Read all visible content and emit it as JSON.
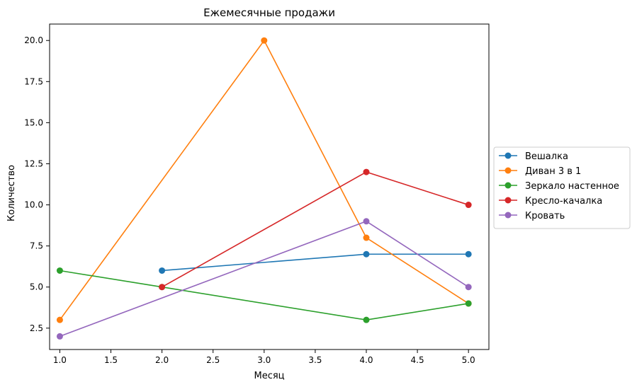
{
  "chart_data": {
    "type": "line",
    "title": "Ежемесячные продажи",
    "xlabel": "Месяц",
    "ylabel": "Количество",
    "xlim": [
      0.9,
      5.2
    ],
    "ylim": [
      1.2,
      21.0
    ],
    "x_ticks": [
      1.0,
      1.5,
      2.0,
      2.5,
      3.0,
      3.5,
      4.0,
      4.5,
      5.0
    ],
    "x_tick_labels": [
      "1.0",
      "1.5",
      "2.0",
      "2.5",
      "3.0",
      "3.5",
      "4.0",
      "4.5",
      "5.0"
    ],
    "y_ticks": [
      2.5,
      5.0,
      7.5,
      10.0,
      12.5,
      15.0,
      17.5,
      20.0
    ],
    "y_tick_labels": [
      "2.5",
      "5.0",
      "7.5",
      "10.0",
      "12.5",
      "15.0",
      "17.5",
      "20.0"
    ],
    "grid": false,
    "legend_position": "center-right, outside plot",
    "series": [
      {
        "name": "Вешалка",
        "color": "#1f77b4",
        "points": [
          [
            2,
            6
          ],
          [
            4,
            7
          ],
          [
            5,
            7
          ]
        ]
      },
      {
        "name": "Диван 3 в 1",
        "color": "#ff7f0e",
        "points": [
          [
            1,
            3
          ],
          [
            3,
            20
          ],
          [
            4,
            8
          ],
          [
            5,
            4
          ]
        ]
      },
      {
        "name": "Зеркало настенное",
        "color": "#2ca02c",
        "points": [
          [
            1,
            6
          ],
          [
            2,
            5
          ],
          [
            4,
            3
          ],
          [
            5,
            4
          ]
        ]
      },
      {
        "name": "Кресло-качалка",
        "color": "#d62728",
        "points": [
          [
            2,
            5
          ],
          [
            4,
            12
          ],
          [
            5,
            10
          ]
        ]
      },
      {
        "name": "Кровать",
        "color": "#9467bd",
        "points": [
          [
            1,
            2
          ],
          [
            4,
            9
          ],
          [
            5,
            5
          ]
        ]
      }
    ]
  }
}
